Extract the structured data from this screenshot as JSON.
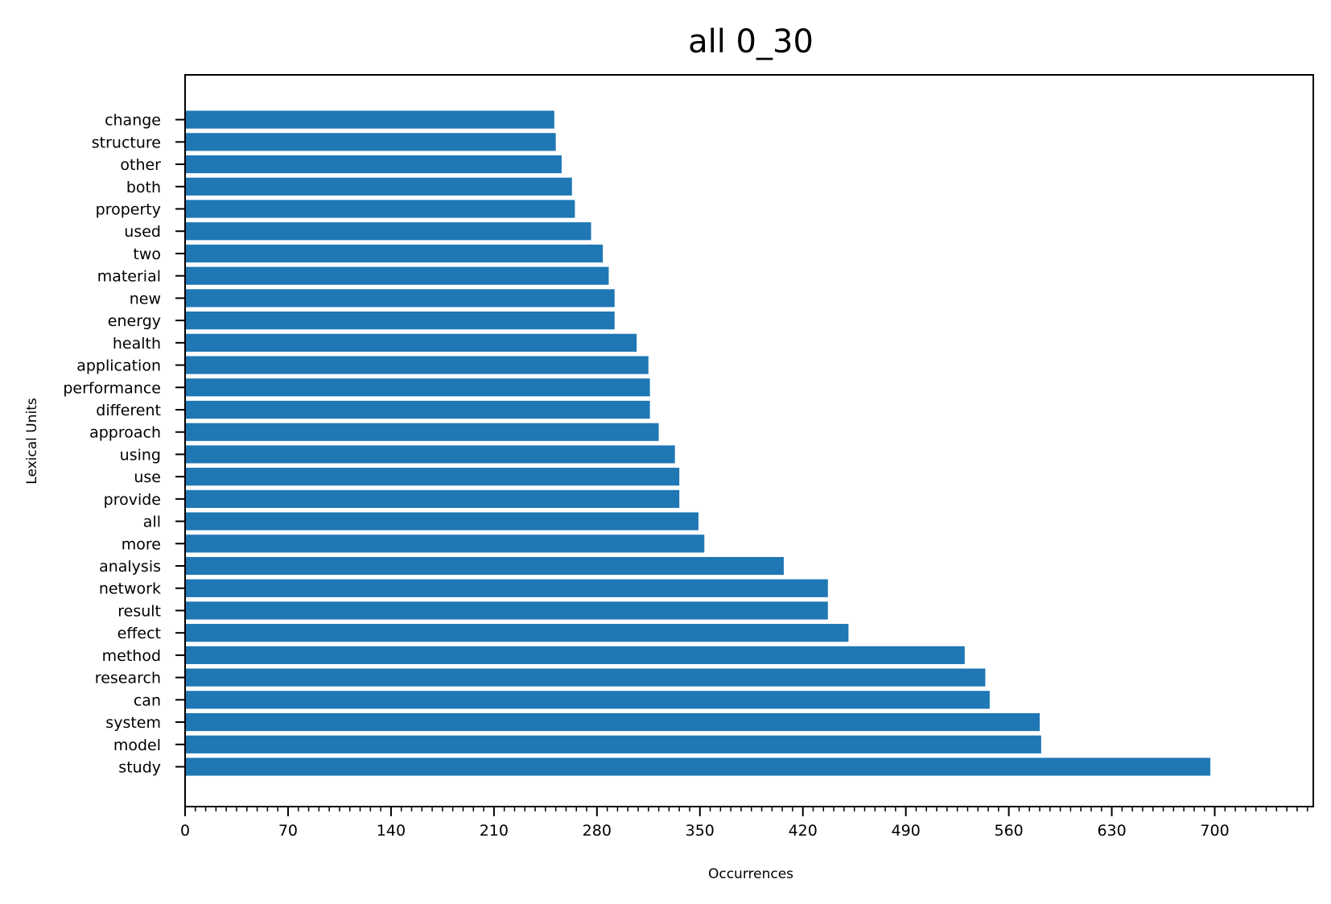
{
  "chart_data": {
    "type": "bar",
    "orientation": "horizontal",
    "title": "all 0_30",
    "xlabel": "Occurrences",
    "ylabel": "Lexical Units",
    "categories": [
      "study",
      "model",
      "system",
      "can",
      "research",
      "method",
      "effect",
      "result",
      "network",
      "analysis",
      "more",
      "all",
      "provide",
      "use",
      "using",
      "approach",
      "different",
      "performance",
      "application",
      "health",
      "energy",
      "new",
      "material",
      "two",
      "used",
      "property",
      "both",
      "other",
      "structure",
      "change"
    ],
    "values": [
      697,
      582,
      581,
      547,
      544,
      530,
      451,
      437,
      437,
      407,
      353,
      349,
      336,
      336,
      333,
      322,
      316,
      316,
      315,
      307,
      292,
      292,
      288,
      284,
      276,
      265,
      263,
      256,
      252,
      251
    ],
    "xlim": [
      0,
      767
    ],
    "xticks": [
      0,
      70,
      140,
      210,
      280,
      350,
      420,
      490,
      560,
      630,
      700
    ],
    "xtick_labels": [
      "0",
      "70",
      "140",
      "210",
      "280",
      "350",
      "420",
      "490",
      "560",
      "630",
      "700"
    ],
    "minor_tick_step": 7,
    "grid": false,
    "bar_color": "#1f77b4"
  }
}
